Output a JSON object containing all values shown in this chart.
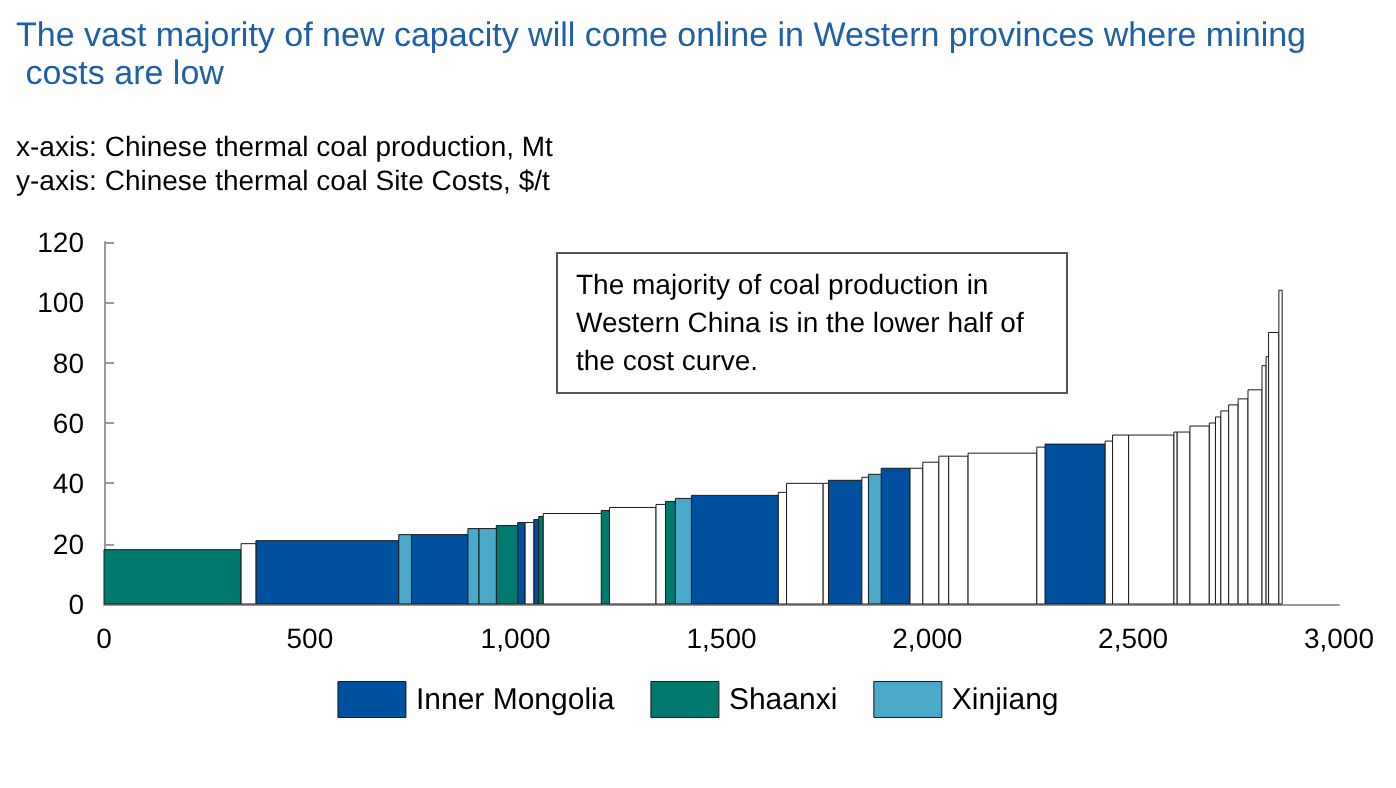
{
  "chart_data": {
    "type": "histogram",
    "title": "The vast majority of new capacity will come online in Western provinces where mining costs are low",
    "xlabel": "x-axis: Chinese thermal coal production, Mt",
    "ylabel": "y-axis: Chinese thermal coal Site Costs, $/t",
    "annotations": [
      "The majority of coal production in Western China is in the lower half of the cost curve."
    ],
    "bins": [
      0,
      333,
      369,
      716,
      747,
      884,
      911,
      953,
      1005,
      1023,
      1044,
      1056,
      1067,
      1208,
      1228,
      1341,
      1364,
      1388,
      1427,
      1638,
      1658,
      1747,
      1760,
      1841,
      1857,
      1888,
      1958,
      1989,
      2028,
      2052,
      2099,
      2266,
      2286,
      2432,
      2450,
      2489,
      2599,
      2607,
      2638,
      2685,
      2700,
      2713,
      2732,
      2755,
      2779,
      2813,
      2823,
      2829,
      2854,
      2862
    ],
    "series": [
      {
        "name": "Inner Mongolia",
        "color": "#0050a0",
        "values": [
          null,
          null,
          21,
          null,
          23,
          null,
          null,
          null,
          27,
          null,
          28,
          null,
          null,
          null,
          null,
          null,
          null,
          null,
          36,
          null,
          null,
          null,
          41,
          null,
          null,
          45,
          null,
          null,
          null,
          null,
          null,
          null,
          53,
          null,
          null,
          null,
          null,
          null,
          null,
          null,
          null,
          null,
          null,
          null,
          null,
          null,
          null,
          null,
          null
        ]
      },
      {
        "name": "Shaanxi",
        "color": "#007a6e",
        "values": [
          18,
          null,
          null,
          null,
          null,
          null,
          null,
          26,
          null,
          null,
          null,
          29,
          null,
          31,
          null,
          null,
          34,
          null,
          null,
          null,
          null,
          null,
          null,
          null,
          null,
          null,
          null,
          null,
          null,
          null,
          null,
          null,
          null,
          null,
          null,
          null,
          null,
          null,
          null,
          null,
          null,
          null,
          null,
          null,
          null,
          null,
          null,
          null,
          null
        ]
      },
      {
        "name": "Xinjiang",
        "color": "#4aa8c8",
        "values": [
          null,
          null,
          null,
          23,
          null,
          25,
          25,
          null,
          null,
          null,
          null,
          null,
          null,
          null,
          null,
          null,
          null,
          35,
          null,
          null,
          null,
          null,
          null,
          null,
          43,
          null,
          null,
          null,
          null,
          null,
          null,
          null,
          null,
          null,
          null,
          null,
          null,
          null,
          null,
          null,
          null,
          null,
          null,
          null,
          null,
          null,
          null,
          null,
          null
        ]
      },
      {
        "color": "#ffffff",
        "values": [
          null,
          20,
          null,
          null,
          null,
          null,
          null,
          null,
          null,
          27,
          null,
          null,
          30,
          null,
          32,
          33,
          null,
          null,
          null,
          37,
          40,
          40,
          null,
          42,
          null,
          null,
          45,
          47,
          49,
          49,
          50,
          52,
          null,
          54,
          56,
          56,
          57,
          57,
          59,
          60,
          62,
          64,
          66,
          68,
          71,
          79,
          82,
          90,
          104
        ]
      }
    ],
    "xlim": [
      0,
      3000
    ],
    "xticks": [
      0,
      500,
      {
        "value": 1000,
        "label": "1,000"
      },
      {
        "value": 1500,
        "label": "1,500"
      },
      {
        "value": 2000,
        "label": "2,000"
      },
      {
        "value": 2500,
        "label": "2,500"
      },
      {
        "value": 3000,
        "label": "3,000"
      }
    ],
    "ylim": [
      0,
      120
    ],
    "yticks": [
      0,
      20,
      40,
      60,
      80,
      100,
      120
    ],
    "legend": "bottom"
  }
}
